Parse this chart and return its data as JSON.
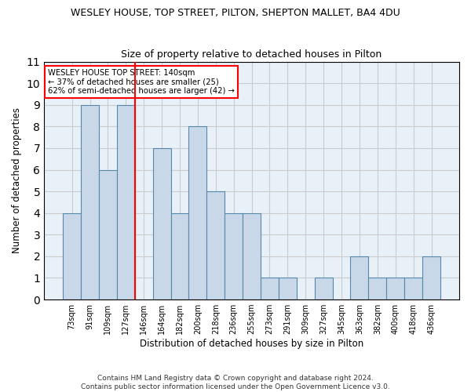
{
  "title1": "WESLEY HOUSE, TOP STREET, PILTON, SHEPTON MALLET, BA4 4DU",
  "title2": "Size of property relative to detached houses in Pilton",
  "xlabel": "Distribution of detached houses by size in Pilton",
  "ylabel": "Number of detached properties",
  "footer": "Contains HM Land Registry data © Crown copyright and database right 2024.\nContains public sector information licensed under the Open Government Licence v3.0.",
  "annotation_line1": "WESLEY HOUSE TOP STREET: 140sqm",
  "annotation_line2": "← 37% of detached houses are smaller (25)",
  "annotation_line3": "62% of semi-detached houses are larger (42) →",
  "bar_labels": [
    "73sqm",
    "91sqm",
    "109sqm",
    "127sqm",
    "146sqm",
    "164sqm",
    "182sqm",
    "200sqm",
    "218sqm",
    "236sqm",
    "255sqm",
    "273sqm",
    "291sqm",
    "309sqm",
    "327sqm",
    "345sqm",
    "363sqm",
    "382sqm",
    "400sqm",
    "418sqm",
    "436sqm"
  ],
  "bar_values": [
    4,
    9,
    6,
    9,
    0,
    7,
    4,
    8,
    5,
    4,
    4,
    1,
    1,
    0,
    1,
    0,
    2,
    1,
    1,
    1,
    2
  ],
  "bar_color": "#c8d8e8",
  "bar_edge_color": "#5588aa",
  "reference_line_index": 4,
  "reference_line_color": "red",
  "ylim": [
    0,
    11
  ],
  "yticks": [
    0,
    1,
    2,
    3,
    4,
    5,
    6,
    7,
    8,
    9,
    10,
    11
  ],
  "grid_color": "#cccccc",
  "bg_color": "#e8f0f8"
}
